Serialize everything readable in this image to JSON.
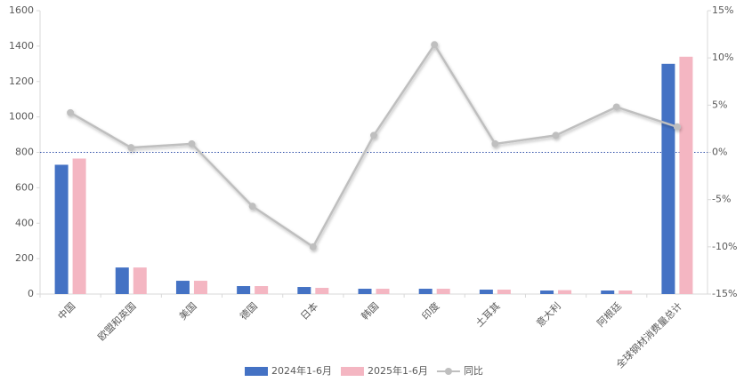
{
  "chart_data": {
    "type": "bar",
    "categories": [
      "中国",
      "欧盟和英国",
      "美国",
      "德国",
      "日本",
      "韩国",
      "印度",
      "土耳其",
      "意大利",
      "阿根廷",
      "全球钢材消费量总计"
    ],
    "series": [
      {
        "name": "2024年1-6月",
        "type": "bar",
        "color": "#4472c4",
        "values": [
          730,
          150,
          75,
          45,
          40,
          30,
          30,
          25,
          20,
          20,
          1300
        ]
      },
      {
        "name": "2025年1-6月",
        "type": "bar",
        "color": "#f4b6c2",
        "values": [
          765,
          150,
          75,
          45,
          35,
          30,
          30,
          25,
          22,
          20,
          1340
        ]
      },
      {
        "name": "同比",
        "type": "line",
        "axis": "y2",
        "color": "#bfbfbf",
        "values": [
          4.2,
          0.5,
          0.9,
          -5.7,
          -10,
          1.8,
          11.4,
          0.9,
          1.8,
          4.8,
          2.7
        ]
      }
    ],
    "ylim": [
      0,
      1600
    ],
    "yticks": [
      0,
      200,
      400,
      600,
      800,
      1000,
      1200,
      1400,
      1600
    ],
    "y2lim": [
      -15,
      15
    ],
    "y2ticks": [
      {
        "value": -15,
        "label": "-15%"
      },
      {
        "value": -10,
        "label": "-10%"
      },
      {
        "value": -5,
        "label": "-5%"
      },
      {
        "value": 0,
        "label": "0%"
      },
      {
        "value": 5,
        "label": "5%"
      },
      {
        "value": 10,
        "label": "10%"
      },
      {
        "value": 15,
        "label": "15%"
      }
    ],
    "grid": false,
    "legend": "bottom"
  }
}
